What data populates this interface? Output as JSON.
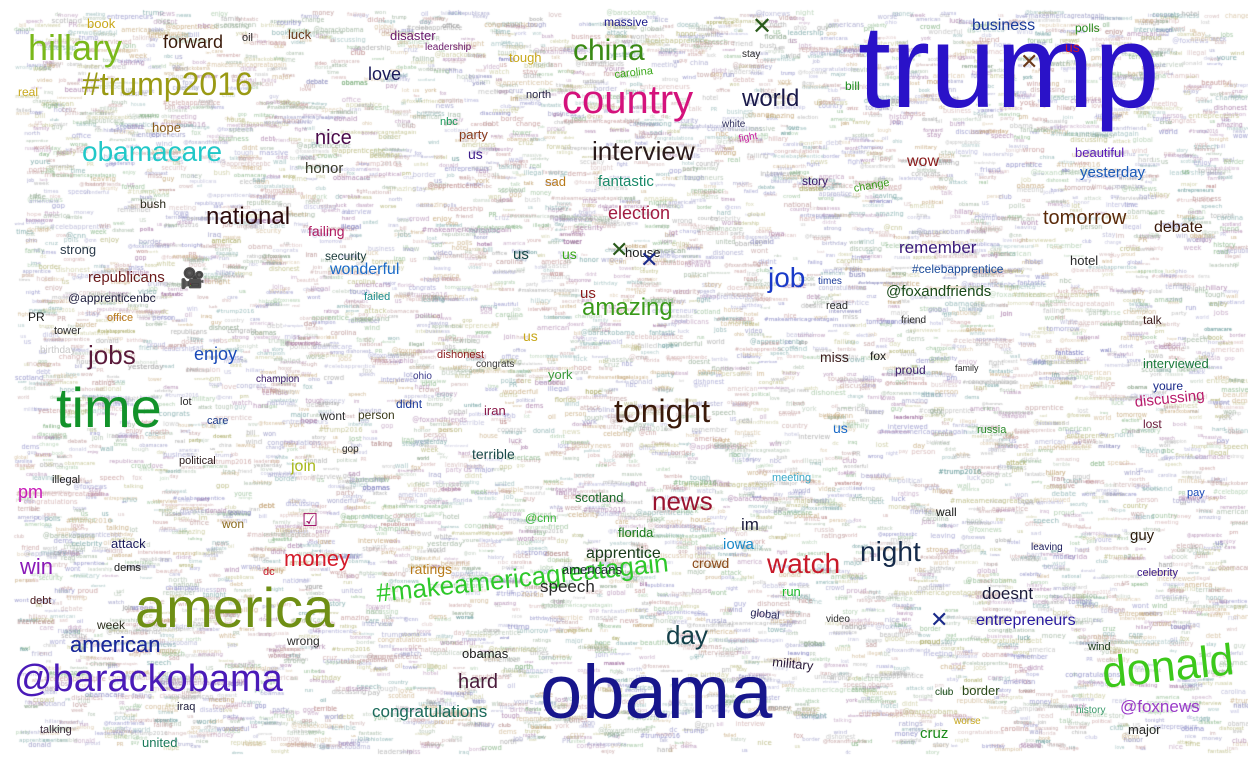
{
  "words": [
    {
      "text": "trump",
      "color": "#2a12c8"
    },
    {
      "text": "obama",
      "color": "#17168c"
    },
    {
      "text": "america",
      "color": "#6f8f14"
    },
    {
      "text": "time",
      "color": "#12922a"
    },
    {
      "text": "country",
      "color": "#d4127c"
    },
    {
      "text": "@barackobama",
      "color": "#4a1ab8"
    },
    {
      "text": "donald",
      "color": "#3cc81a"
    },
    {
      "text": "hillary",
      "color": "#7ab81a"
    },
    {
      "text": "#trump2016",
      "color": "#9a9a14"
    },
    {
      "text": "#makeamericagreatagain",
      "color": "#2ec82a"
    },
    {
      "text": "tonight",
      "color": "#3a1a0a"
    },
    {
      "text": "obamacare",
      "color": "#22c8c8"
    },
    {
      "text": "china",
      "color": "#3a8a14"
    },
    {
      "text": "interview",
      "color": "#2a1a1a"
    },
    {
      "text": "national",
      "color": "#2a0a0a"
    },
    {
      "text": "news",
      "color": "#9a1430"
    },
    {
      "text": "watch",
      "color": "#c81a2a"
    },
    {
      "text": "night",
      "color": "#142a4a"
    },
    {
      "text": "jobs",
      "color": "#5a1a3a"
    },
    {
      "text": "job",
      "color": "#1a3ac8"
    },
    {
      "text": "day",
      "color": "#14404a"
    },
    {
      "text": "amazing",
      "color": "#3a9a1a"
    },
    {
      "text": "world",
      "color": "#1a1a4a"
    },
    {
      "text": "american",
      "color": "#1a2a9a"
    },
    {
      "text": "money",
      "color": "#d41a2a"
    },
    {
      "text": "tomorrow",
      "color": "#5a2a0a"
    },
    {
      "text": "election",
      "color": "#a01a40"
    },
    {
      "text": "hard",
      "color": "#4a1a3a"
    },
    {
      "text": "forward",
      "color": "#3a1a0a"
    },
    {
      "text": "win",
      "color": "#8a1ab8"
    },
    {
      "text": "love",
      "color": "#1a1a5a"
    },
    {
      "text": "nice",
      "color": "#4a0a4a"
    },
    {
      "text": "enjoy",
      "color": "#1a4ab8"
    },
    {
      "text": "wonderful",
      "color": "#1a6ac8"
    },
    {
      "text": "@foxnews",
      "color": "#9a3ac8"
    },
    {
      "text": "congratulations",
      "color": "#1a6a5a"
    },
    {
      "text": "doesnt",
      "color": "#1a1a3a"
    },
    {
      "text": "entrepreneurs",
      "color": "#2a1aa0"
    },
    {
      "text": "remember",
      "color": "#3a1a7a"
    },
    {
      "text": "business",
      "color": "#1a3a9a"
    },
    {
      "text": "debate",
      "color": "#3a1a0a"
    },
    {
      "text": "fantastic",
      "color": "#1a8a6a"
    },
    {
      "text": "honor",
      "color": "#3a3a2a"
    },
    {
      "text": "failing",
      "color": "#b01a60"
    },
    {
      "text": "speech",
      "color": "#2a2a2a"
    },
    {
      "text": "apprentice",
      "color": "#1a3a1a"
    },
    {
      "text": "crowd",
      "color": "#8a4a1a"
    },
    {
      "text": "ratings",
      "color": "#b87a1a"
    },
    {
      "text": "iowa",
      "color": "#1a8ac8"
    },
    {
      "text": "guy",
      "color": "#2a1a0a"
    },
    {
      "text": "pm",
      "color": "#c81ab8"
    },
    {
      "text": "join",
      "color": "#a8b81a"
    },
    {
      "text": "terrible",
      "color": "#1a4a4a"
    },
    {
      "text": "republicans",
      "color": "#6a1a1a"
    },
    {
      "text": "yesterday",
      "color": "#1a5ab8"
    },
    {
      "text": "@foxandfriends",
      "color": "#1a4a1a"
    },
    {
      "text": "#celebapprentice",
      "color": "#1a4a9a"
    },
    {
      "text": "wow",
      "color": "#8a1a1a"
    },
    {
      "text": "beautiful",
      "color": "#5a1ab8"
    },
    {
      "text": "hotel",
      "color": "#2a2a2a"
    },
    {
      "text": "discussing",
      "color": "#b81a6a"
    },
    {
      "text": "interviewed",
      "color": "#1a7a3a"
    },
    {
      "text": "border",
      "color": "#2a4a1a"
    },
    {
      "text": "obamas",
      "color": "#1a1a1a"
    },
    {
      "text": "american",
      "color": "#1a2a9a"
    },
    {
      "text": "florida",
      "color": "#1a7a1a"
    },
    {
      "text": "scotland",
      "color": "#1a6a2a"
    },
    {
      "text": "americans",
      "color": "#1a2a2a"
    },
    {
      "text": "military",
      "color": "#2a1a3a"
    },
    {
      "text": "cruz",
      "color": "#1a8a1a"
    },
    {
      "text": "major",
      "color": "#2a2a2a"
    },
    {
      "text": "united",
      "color": "#1a7a5a"
    },
    {
      "text": "@cnn",
      "color": "#3ab83a"
    },
    {
      "text": "york",
      "color": "#3a9a3a"
    },
    {
      "text": "wont",
      "color": "#2a2a2a"
    },
    {
      "text": "person",
      "color": "#3a3a1a"
    },
    {
      "text": "didnt",
      "color": "#1a3a9a"
    },
    {
      "text": "iran",
      "color": "#8a1a4a"
    },
    {
      "text": "sad",
      "color": "#b87a1a"
    },
    {
      "text": "miss",
      "color": "#3a1a1a"
    },
    {
      "text": "fox",
      "color": "#1a1a1a"
    },
    {
      "text": "proud",
      "color": "#3a1a6a"
    },
    {
      "text": "strong",
      "color": "#2a3a4a"
    },
    {
      "text": "bush",
      "color": "#2a2a1a"
    },
    {
      "text": "hope",
      "color": "#8a5a1a"
    },
    {
      "text": "security",
      "color": "#1a3a3a"
    },
    {
      "text": "story",
      "color": "#3a1a6a"
    },
    {
      "text": "house",
      "color": "#1a1a1a"
    },
    {
      "text": "attack",
      "color": "#1a1a5a"
    },
    {
      "text": "dems",
      "color": "#1a1a1a"
    },
    {
      "text": "week",
      "color": "#2a2a1a"
    },
    {
      "text": "debt",
      "color": "#4a1a1a"
    },
    {
      "text": "wrong",
      "color": "#2a2a2a"
    },
    {
      "text": "iraq",
      "color": "#1a1a3a"
    },
    {
      "text": "talking",
      "color": "#3a2a3a"
    },
    {
      "text": "lost",
      "color": "#6a1a3a"
    },
    {
      "text": "youre",
      "color": "#1a2a8a"
    },
    {
      "text": "talk",
      "color": "#3a1a1a"
    },
    {
      "text": "celebrity",
      "color": "#3a1a8a"
    },
    {
      "text": "pay",
      "color": "#1a4ab8"
    },
    {
      "text": "wind",
      "color": "#1a3a1a"
    },
    {
      "text": "history",
      "color": "#3a9a6a"
    },
    {
      "text": "office",
      "color": "#b87a1a"
    },
    {
      "text": "tower",
      "color": "#2a2a2a"
    },
    {
      "text": "change",
      "color": "#3a9a1a"
    },
    {
      "text": "north",
      "color": "#2a2a4a"
    },
    {
      "text": "tough",
      "color": "#c8a81a"
    },
    {
      "text": "party",
      "color": "#8a3a1a"
    },
    {
      "text": "nbc",
      "color": "#1a9a5a"
    },
    {
      "text": "bill",
      "color": "#1a8a1a"
    },
    {
      "text": "massive",
      "color": "#1a1a8a"
    },
    {
      "text": "polls",
      "color": "#2a8a1a"
    },
    {
      "text": "us",
      "color": "#1a4a4a"
    },
    {
      "text": "us",
      "color": "#8a1a1a"
    },
    {
      "text": "us",
      "color": "#3a1a8a"
    },
    {
      "text": "us",
      "color": "#c8a81a"
    },
    {
      "text": "us",
      "color": "#1a6ac8"
    },
    {
      "text": "us",
      "color": "#3aa81a"
    },
    {
      "text": "us",
      "color": "#c81a2a"
    },
    {
      "text": "oil",
      "color": "#2a2a2a"
    },
    {
      "text": "luck",
      "color": "#6a3a1a"
    },
    {
      "text": "real",
      "color": "#c8a81a"
    },
    {
      "text": "book",
      "color": "#c8a81a"
    },
    {
      "text": "disaster",
      "color": "#6a1a6a"
    },
    {
      "text": "leadership",
      "color": "#6a1a6a"
    },
    {
      "text": "carolina",
      "color": "#3aa81a"
    },
    {
      "text": "@apprenticenbc",
      "color": "#1a1a3a"
    },
    {
      "text": "PR",
      "color": "#1a1a1a"
    },
    {
      "text": "birthday",
      "color": "#c8c8c8"
    },
    {
      "text": "ohio",
      "color": "#3a3a8a"
    },
    {
      "text": "congrats",
      "color": "#3a3a3a"
    },
    {
      "text": "dishonest",
      "color": "#8a1a1a"
    },
    {
      "text": "political",
      "color": "#2a1a1a"
    },
    {
      "text": "illegal",
      "color": "#1a1a1a"
    },
    {
      "text": "champion",
      "color": "#3a1a6a"
    },
    {
      "text": "read",
      "color": "#2a2a2a"
    },
    {
      "text": "times",
      "color": "#1a3a9a"
    },
    {
      "text": "friend",
      "color": "#2a2a2a"
    },
    {
      "text": "russia",
      "color": "#2a8a2a"
    },
    {
      "text": "failed",
      "color": "#1a8a8a"
    },
    {
      "text": "care",
      "color": "#1a3a8a"
    },
    {
      "text": "lot",
      "color": "#2a2a2a"
    },
    {
      "text": "won",
      "color": "#8a6a1a"
    },
    {
      "text": "dc",
      "color": "#c81a2a"
    },
    {
      "text": "stay",
      "color": "#2a2a2a"
    },
    {
      "text": "white",
      "color": "#2a2a5a"
    },
    {
      "text": "fight",
      "color": "#c81aa0"
    },
    {
      "text": "gop",
      "color": "#2a2a2a"
    },
    {
      "text": "global",
      "color": "#2a2a5a"
    },
    {
      "text": "video",
      "color": "#2a2a2a"
    },
    {
      "text": "run",
      "color": "#1ab82a"
    },
    {
      "text": "leaving",
      "color": "#1a1a5a"
    },
    {
      "text": "club",
      "color": "#1a4a1a"
    },
    {
      "text": "worse",
      "color": "#c8a81a"
    },
    {
      "text": "meeting",
      "color": "#3aa8c8"
    },
    {
      "text": "im",
      "color": "#1a1a3a"
    },
    {
      "text": "wall",
      "color": "#1a1a1a"
    },
    {
      "text": "family",
      "color": "#2a2a2a"
    }
  ],
  "glyphs": [
    {
      "name": "close-x-icon",
      "char": "✕",
      "color": "#2a5a1a"
    },
    {
      "name": "close-x-icon",
      "char": "✕",
      "color": "#6a3a1a"
    },
    {
      "name": "close-x-icon",
      "char": "✕",
      "color": "#2a5a1a"
    },
    {
      "name": "close-x-icon",
      "char": "✕",
      "color": "#1a2a8a"
    },
    {
      "name": "close-x-icon",
      "char": "✕",
      "color": "#1a2a8a"
    },
    {
      "name": "video-camera-icon",
      "char": "🎥",
      "color": "#5a1a1a"
    },
    {
      "name": "ballot-box-check-icon",
      "char": "☑",
      "color": "#a0146a"
    }
  ]
}
